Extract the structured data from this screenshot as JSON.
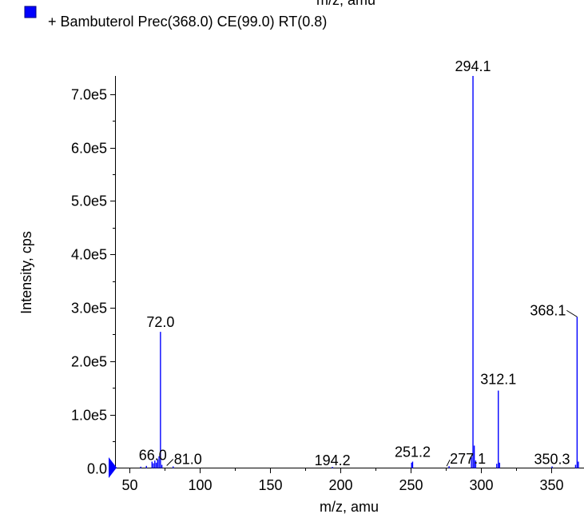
{
  "top_cut_text": "m/z, amu",
  "chart_data": {
    "type": "bar",
    "title": "+ Bambuterol Prec(368.0) CE(99.0) RT(0.8)",
    "xlabel": "m/z, amu",
    "ylabel": "Intensity, cps",
    "xlim": [
      40,
      373
    ],
    "ylim": [
      0,
      734000
    ],
    "x_ticks": [
      "50",
      "100",
      "150",
      "200",
      "250",
      "300",
      "350"
    ],
    "x_tick_values": [
      50,
      100,
      150,
      200,
      250,
      300,
      350
    ],
    "y_ticks": [
      "0.0",
      "1.0e5",
      "2.0e5",
      "3.0e5",
      "4.0e5",
      "5.0e5",
      "6.0e5",
      "7.0e5"
    ],
    "y_tick_values": [
      0,
      100000,
      200000,
      300000,
      400000,
      500000,
      600000,
      700000
    ],
    "series_color": "#0000ff",
    "peaks": [
      {
        "mz": 58.0,
        "intensity": 2500
      },
      {
        "mz": 62.0,
        "intensity": 4000
      },
      {
        "mz": 66.0,
        "intensity": 12000
      },
      {
        "mz": 67.0,
        "intensity": 9000
      },
      {
        "mz": 68.0,
        "intensity": 14000
      },
      {
        "mz": 69.0,
        "intensity": 10000
      },
      {
        "mz": 70.0,
        "intensity": 16000
      },
      {
        "mz": 71.0,
        "intensity": 22000
      },
      {
        "mz": 72.0,
        "intensity": 255000
      },
      {
        "mz": 73.0,
        "intensity": 6000
      },
      {
        "mz": 81.0,
        "intensity": 3000
      },
      {
        "mz": 194.2,
        "intensity": 2000
      },
      {
        "mz": 250.5,
        "intensity": 10000
      },
      {
        "mz": 251.2,
        "intensity": 12000
      },
      {
        "mz": 277.1,
        "intensity": 3500
      },
      {
        "mz": 293.0,
        "intensity": 20000
      },
      {
        "mz": 294.1,
        "intensity": 734000
      },
      {
        "mz": 295.0,
        "intensity": 42000
      },
      {
        "mz": 296.0,
        "intensity": 14000
      },
      {
        "mz": 311.0,
        "intensity": 8000
      },
      {
        "mz": 312.1,
        "intensity": 145000
      },
      {
        "mz": 313.0,
        "intensity": 10000
      },
      {
        "mz": 350.3,
        "intensity": 3000
      },
      {
        "mz": 367.0,
        "intensity": 6000
      },
      {
        "mz": 368.1,
        "intensity": 283000
      },
      {
        "mz": 369.0,
        "intensity": 12000
      }
    ],
    "peak_labels": [
      {
        "text": "72.0",
        "mz": 72.0,
        "intensity": 255000
      },
      {
        "text": "66.0",
        "mz": 66.0,
        "intensity": 12000
      },
      {
        "text": "81.0",
        "mz": 81.0,
        "intensity": 3000
      },
      {
        "text": "194.2",
        "mz": 194.2,
        "intensity": 2000
      },
      {
        "text": "251.2",
        "mz": 251.2,
        "intensity": 12000
      },
      {
        "text": "277.1",
        "mz": 277.1,
        "intensity": 3500
      },
      {
        "text": "294.1",
        "mz": 294.1,
        "intensity": 734000
      },
      {
        "text": "312.1",
        "mz": 312.1,
        "intensity": 145000
      },
      {
        "text": "350.3",
        "mz": 350.3,
        "intensity": 3000
      },
      {
        "text": "368.1",
        "mz": 368.1,
        "intensity": 283000
      }
    ]
  }
}
